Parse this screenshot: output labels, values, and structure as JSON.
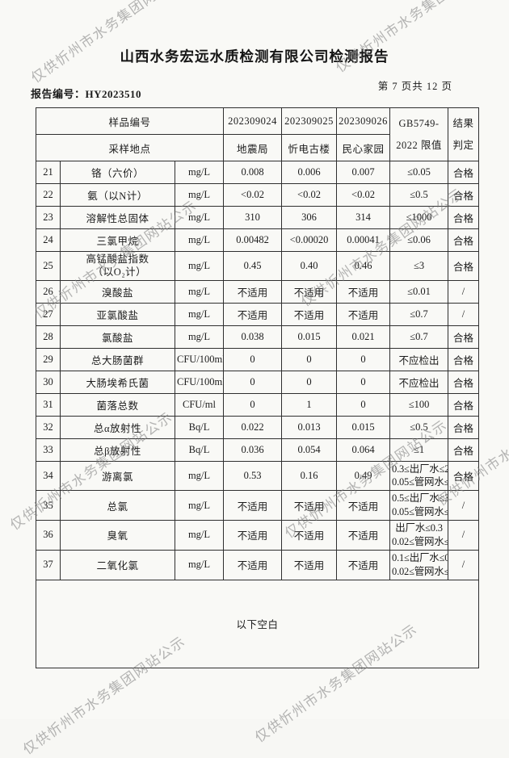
{
  "watermark": {
    "text": "仅供忻州市水务集团网站公示"
  },
  "header": {
    "title": "山西水务宏远水质检测有限公司检测报告",
    "report_no": "报告编号：HY2023510",
    "page_info": "第 7 页共 12 页"
  },
  "table": {
    "head": {
      "sample_id_label": "样品编号",
      "sample_site_label": "采样地点",
      "sample_ids": [
        "202309024",
        "202309025",
        "202309026"
      ],
      "sample_sites": [
        "地震局",
        "忻电古楼",
        "民心家园"
      ],
      "limit_label_line1": "GB5749-",
      "limit_label_line2": "2022 限值",
      "result_label_line1": "结果",
      "result_label_line2": "判定"
    },
    "rows": [
      {
        "no": "21",
        "name": "铬（六价）",
        "unit": "mg/L",
        "v1": "0.008",
        "v2": "0.006",
        "v3": "0.007",
        "limit": "≤0.05",
        "result": "合格"
      },
      {
        "no": "22",
        "name": "氨（以N计）",
        "unit": "mg/L",
        "v1": "<0.02",
        "v2": "<0.02",
        "v3": "<0.02",
        "limit": "≤0.5",
        "result": "合格"
      },
      {
        "no": "23",
        "name": "溶解性总固体",
        "unit": "mg/L",
        "v1": "310",
        "v2": "306",
        "v3": "314",
        "limit": "≤1000",
        "result": "合格"
      },
      {
        "no": "24",
        "name": "三氯甲烷",
        "unit": "mg/L",
        "v1": "0.00482",
        "v2": "<0.00020",
        "v3": "0.00041",
        "limit": "≤0.06",
        "result": "合格"
      },
      {
        "no": "25",
        "name": "高锰酸盐指数",
        "name2": "（以O₂计）",
        "unit": "mg/L",
        "v1": "0.45",
        "v2": "0.40",
        "v3": "0.46",
        "limit": "≤3",
        "result": "合格"
      },
      {
        "no": "26",
        "name": "溴酸盐",
        "unit": "mg/L",
        "v1": "不适用",
        "v2": "不适用",
        "v3": "不适用",
        "limit": "≤0.01",
        "result": "/"
      },
      {
        "no": "27",
        "name": "亚氯酸盐",
        "unit": "mg/L",
        "v1": "不适用",
        "v2": "不适用",
        "v3": "不适用",
        "limit": "≤0.7",
        "result": "/"
      },
      {
        "no": "28",
        "name": "氯酸盐",
        "unit": "mg/L",
        "v1": "0.038",
        "v2": "0.015",
        "v3": "0.021",
        "limit": "≤0.7",
        "result": "合格"
      },
      {
        "no": "29",
        "name": "总大肠菌群",
        "unit": "CFU/100ml",
        "v1": "0",
        "v2": "0",
        "v3": "0",
        "limit": "不应检出",
        "result": "合格"
      },
      {
        "no": "30",
        "name": "大肠埃希氏菌",
        "unit": "CFU/100ml",
        "v1": "0",
        "v2": "0",
        "v3": "0",
        "limit": "不应检出",
        "result": "合格"
      },
      {
        "no": "31",
        "name": "菌落总数",
        "unit": "CFU/ml",
        "v1": "0",
        "v2": "1",
        "v3": "0",
        "limit": "≤100",
        "result": "合格"
      },
      {
        "no": "32",
        "name": "总α放射性",
        "unit": "Bq/L",
        "v1": "0.022",
        "v2": "0.013",
        "v3": "0.015",
        "limit": "≤0.5",
        "result": "合格"
      },
      {
        "no": "33",
        "name": "总β放射性",
        "unit": "Bq/L",
        "v1": "0.036",
        "v2": "0.054",
        "v3": "0.064",
        "limit": "≤1",
        "result": "合格"
      },
      {
        "no": "34",
        "name": "游离氯",
        "unit": "mg/L",
        "v1": "0.53",
        "v2": "0.16",
        "v3": "0.49",
        "limit": "0.3≤出厂水≤2",
        "limit2": "0.05≤管网水≤2",
        "result": "合格"
      },
      {
        "no": "35",
        "name": "总氯",
        "unit": "mg/L",
        "v1": "不适用",
        "v2": "不适用",
        "v3": "不适用",
        "limit": "0.5≤出厂水≤3",
        "limit2": "0.05≤管网水≤3",
        "result": "/"
      },
      {
        "no": "36",
        "name": "臭氧",
        "unit": "mg/L",
        "v1": "不适用",
        "v2": "不适用",
        "v3": "不适用",
        "limit": "出厂水≤0.3",
        "limit2": "0.02≤管网水≤0.3",
        "result": "/"
      },
      {
        "no": "37",
        "name": "二氧化氯",
        "unit": "mg/L",
        "v1": "不适用",
        "v2": "不适用",
        "v3": "不适用",
        "limit": "0.1≤出厂水≤0.8",
        "limit2": "0.02≤管网水≤0.8",
        "result": "/"
      }
    ],
    "footer_note": "以下空白"
  }
}
